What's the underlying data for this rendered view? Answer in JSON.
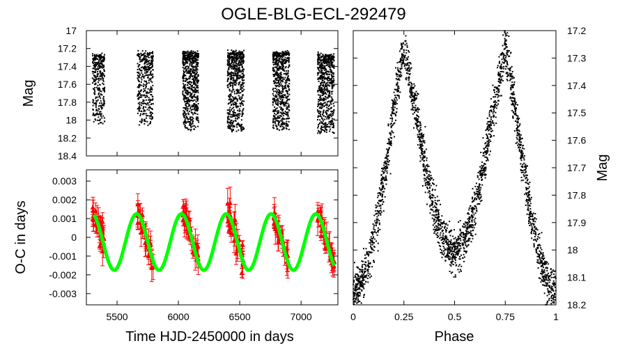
{
  "title": "OGLE-BLG-ECL-292479",
  "colors": {
    "lightcurve": "#000000",
    "oc_points": "#ff0000",
    "oc_model": "#00ff00"
  },
  "chart_data": [
    {
      "type": "scatter",
      "panel": "top-left",
      "ylabel": "Mag",
      "xlabel": "",
      "xlim": [
        5250,
        7300
      ],
      "ylim": [
        18.4,
        17.0
      ],
      "yticks": [
        "17",
        "17.2",
        "17.4",
        "17.6",
        "17.8",
        "18",
        "18.2",
        "18.4"
      ],
      "ytick_values": [
        17.0,
        17.2,
        17.4,
        17.6,
        17.8,
        18.0,
        18.2,
        18.4
      ],
      "xtick_values": [
        5500,
        6000,
        6500,
        7000
      ],
      "seasons": [
        {
          "x_start": 5300,
          "x_end": 5400,
          "mag_bright": 17.28,
          "mag_faint": 18.05,
          "density": 0.5
        },
        {
          "x_start": 5665,
          "x_end": 5795,
          "mag_bright": 17.25,
          "mag_faint": 18.05,
          "density": 0.6
        },
        {
          "x_start": 6035,
          "x_end": 6165,
          "mag_bright": 17.25,
          "mag_faint": 18.1,
          "density": 1.0
        },
        {
          "x_start": 6400,
          "x_end": 6535,
          "mag_bright": 17.25,
          "mag_faint": 18.12,
          "density": 1.0
        },
        {
          "x_start": 6770,
          "x_end": 6905,
          "mag_bright": 17.25,
          "mag_faint": 18.12,
          "density": 1.0
        },
        {
          "x_start": 7135,
          "x_end": 7270,
          "mag_bright": 17.28,
          "mag_faint": 18.15,
          "density": 1.0
        }
      ]
    },
    {
      "type": "scatter",
      "panel": "bottom-left",
      "xlabel": "Time HJD-2450000 in days",
      "ylabel": "O-C in days",
      "xlim": [
        5250,
        7300
      ],
      "ylim": [
        -0.0036,
        0.0036
      ],
      "xticks": [
        "5500",
        "6000",
        "6500",
        "7000"
      ],
      "xtick_values": [
        5500,
        6000,
        6500,
        7000
      ],
      "yticks": [
        "0.003",
        "0.002",
        "0.001",
        "0",
        "-0.001",
        "-0.002",
        "-0.003"
      ],
      "ytick_values": [
        0.003,
        0.002,
        0.001,
        0,
        -0.001,
        -0.002,
        -0.003
      ],
      "model": {
        "period_days": 365.25,
        "amplitude": 0.0015,
        "offset": -0.00025,
        "phase_peak_day": 6390,
        "x_start": 5310,
        "x_end": 7270
      },
      "seasons": [
        {
          "x_start": 5300,
          "x_end": 5400
        },
        {
          "x_start": 5665,
          "x_end": 5795
        },
        {
          "x_start": 6035,
          "x_end": 6165
        },
        {
          "x_start": 6400,
          "x_end": 6535
        },
        {
          "x_start": 6770,
          "x_end": 6905
        },
        {
          "x_start": 7135,
          "x_end": 7270
        }
      ],
      "typical_error": 0.0005
    },
    {
      "type": "scatter",
      "panel": "right",
      "xlabel": "Phase",
      "ylabel": "Mag",
      "xlim": [
        0,
        1
      ],
      "ylim": [
        18.2,
        17.2
      ],
      "xticks": [
        "0",
        "0.25",
        "0.5",
        "0.75",
        "1"
      ],
      "xtick_values": [
        0,
        0.25,
        0.5,
        0.75,
        1
      ],
      "yticks": [
        "17.2",
        "17.3",
        "17.4",
        "17.5",
        "17.6",
        "17.7",
        "17.8",
        "17.9",
        "18",
        "18.1",
        "18.2"
      ],
      "ytick_values": [
        17.2,
        17.3,
        17.4,
        17.5,
        17.6,
        17.7,
        17.8,
        17.9,
        18.0,
        18.1,
        18.2
      ],
      "lightcurve": {
        "mag_max_brightness": 17.27,
        "primary_min_mag": 18.15,
        "secondary_min_mag": 18.0,
        "scatter_mag": 0.04
      }
    }
  ]
}
